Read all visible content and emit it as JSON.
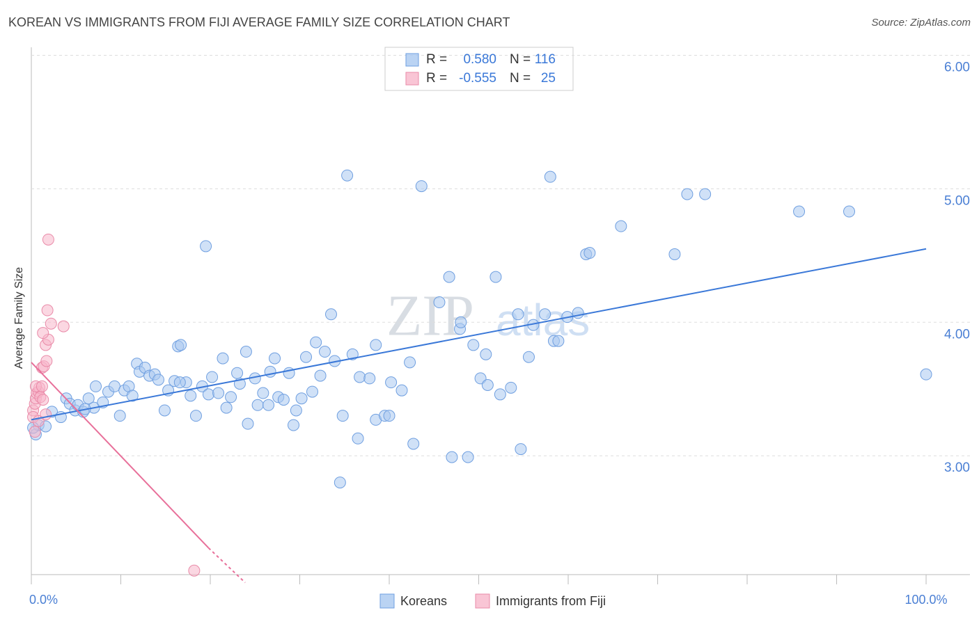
{
  "chart_data": {
    "type": "scatter",
    "title": "KOREAN VS IMMIGRANTS FROM FIJI AVERAGE FAMILY SIZE CORRELATION CHART",
    "source": "Source: ZipAtlas.com",
    "watermark": [
      "ZIP",
      "atlas"
    ],
    "y_label": "Average Family Size",
    "xlim": [
      0,
      104.9
    ],
    "ylim": [
      2.11,
      6.06
    ],
    "xticks": [
      {
        "value": 0,
        "label": "0.0%"
      },
      {
        "value": 100,
        "label": "100.0%"
      }
    ],
    "x_minor_ticks": [
      10,
      20,
      30,
      40,
      50,
      60,
      70,
      80,
      90
    ],
    "yticks": [
      {
        "value": 3,
        "label": "3.00"
      },
      {
        "value": 4,
        "label": "4.00"
      },
      {
        "value": 5,
        "label": "5.00"
      },
      {
        "value": 6,
        "label": "6.00"
      }
    ],
    "grid": true,
    "stat_labels": {
      "r": "R =",
      "n": "N ="
    },
    "series": [
      {
        "name": "Koreans",
        "color": "#6f9fe0",
        "fill": "#a9c8f0",
        "trend_color": "#3a78d8",
        "r": 0.58,
        "r_label": "0.580",
        "n": 116,
        "trendline": {
          "x": [
            0,
            100
          ],
          "values": [
            3.27,
            4.55
          ]
        },
        "x": [
          0.5,
          0.8,
          1.6,
          2.3,
          3.3,
          3.9,
          4.3,
          4.9,
          5.2,
          5.8,
          6.4,
          7.0,
          7.2,
          8.0,
          8.6,
          9.3,
          9.9,
          10.4,
          10.9,
          11.3,
          11.8,
          12.1,
          12.7,
          13.2,
          13.8,
          14.2,
          14.9,
          15.3,
          16.0,
          16.4,
          16.7,
          17.3,
          17.8,
          18.4,
          19.1,
          19.5,
          19.8,
          20.2,
          20.9,
          21.4,
          21.8,
          22.3,
          23.0,
          23.3,
          24.0,
          24.2,
          25.0,
          25.3,
          25.9,
          26.5,
          26.7,
          27.2,
          27.6,
          28.2,
          28.8,
          29.3,
          29.6,
          30.2,
          30.7,
          31.4,
          31.8,
          32.3,
          32.8,
          33.5,
          33.9,
          34.5,
          34.8,
          35.3,
          35.9,
          36.5,
          36.7,
          37.8,
          38.5,
          38.5,
          39.5,
          40.0,
          40.2,
          41.4,
          42.3,
          42.7,
          43.6,
          45.6,
          46.7,
          47.0,
          47.9,
          48.0,
          48.8,
          49.4,
          50.2,
          50.8,
          51.0,
          51.9,
          52.4,
          53.6,
          54.4,
          54.7,
          55.6,
          56.1,
          57.4,
          58.0,
          58.4,
          58.9,
          59.9,
          61.1,
          62.0,
          62.4,
          65.9,
          71.9,
          73.3,
          75.3,
          85.8,
          91.4,
          100.0,
          0.2,
          6.0,
          16.6
        ],
        "values": [
          3.16,
          3.23,
          3.22,
          3.33,
          3.29,
          3.43,
          3.39,
          3.34,
          3.38,
          3.33,
          3.43,
          3.36,
          3.52,
          3.4,
          3.48,
          3.52,
          3.3,
          3.49,
          3.52,
          3.45,
          3.69,
          3.63,
          3.66,
          3.6,
          3.61,
          3.57,
          3.34,
          3.49,
          3.56,
          3.82,
          3.83,
          3.55,
          3.45,
          3.3,
          3.52,
          4.57,
          3.46,
          3.59,
          3.47,
          3.73,
          3.36,
          3.44,
          3.62,
          3.54,
          3.78,
          3.24,
          3.58,
          3.38,
          3.47,
          3.38,
          3.63,
          3.73,
          3.44,
          3.42,
          3.62,
          3.23,
          3.34,
          3.43,
          3.74,
          3.48,
          3.85,
          3.6,
          3.78,
          4.06,
          3.71,
          2.8,
          3.3,
          5.1,
          3.76,
          3.13,
          3.59,
          3.58,
          3.83,
          3.27,
          3.3,
          3.3,
          3.55,
          3.49,
          3.7,
          3.09,
          5.02,
          4.15,
          4.34,
          2.99,
          3.95,
          4.0,
          2.99,
          3.83,
          3.58,
          3.76,
          3.53,
          4.34,
          3.46,
          3.51,
          4.06,
          3.05,
          3.74,
          3.98,
          4.06,
          5.09,
          3.86,
          3.86,
          4.04,
          4.07,
          4.51,
          4.52,
          4.72,
          4.51,
          4.96,
          4.96,
          4.83,
          4.83,
          3.61,
          3.21,
          3.35,
          3.55
        ]
      },
      {
        "name": "Immigrants from Fiji",
        "color": "#e98aa8",
        "fill": "#f7b6ca",
        "trend_color": "#e8709a",
        "r": -0.555,
        "r_label": "-0.555",
        "n": 25,
        "trendline": {
          "x": [
            0,
            19.8
          ],
          "values": [
            3.7,
            2.31
          ]
        },
        "trendline_extension": {
          "x": [
            19.8,
            23.9
          ],
          "values": [
            2.31,
            2.05
          ]
        },
        "x": [
          0.4,
          0.2,
          0.4,
          0.5,
          0.6,
          0.8,
          0.9,
          0.5,
          1.2,
          1.0,
          1.3,
          0.2,
          1.2,
          1.4,
          1.7,
          1.6,
          1.9,
          1.3,
          2.2,
          3.6,
          1.8,
          1.9,
          18.2,
          0.8,
          1.6
        ],
        "values": [
          3.18,
          3.34,
          3.39,
          3.43,
          3.47,
          3.48,
          3.51,
          3.52,
          3.52,
          3.44,
          3.42,
          3.29,
          3.66,
          3.67,
          3.71,
          3.83,
          3.87,
          3.92,
          3.99,
          3.97,
          4.09,
          4.62,
          2.14,
          3.26,
          3.31
        ]
      }
    ]
  }
}
